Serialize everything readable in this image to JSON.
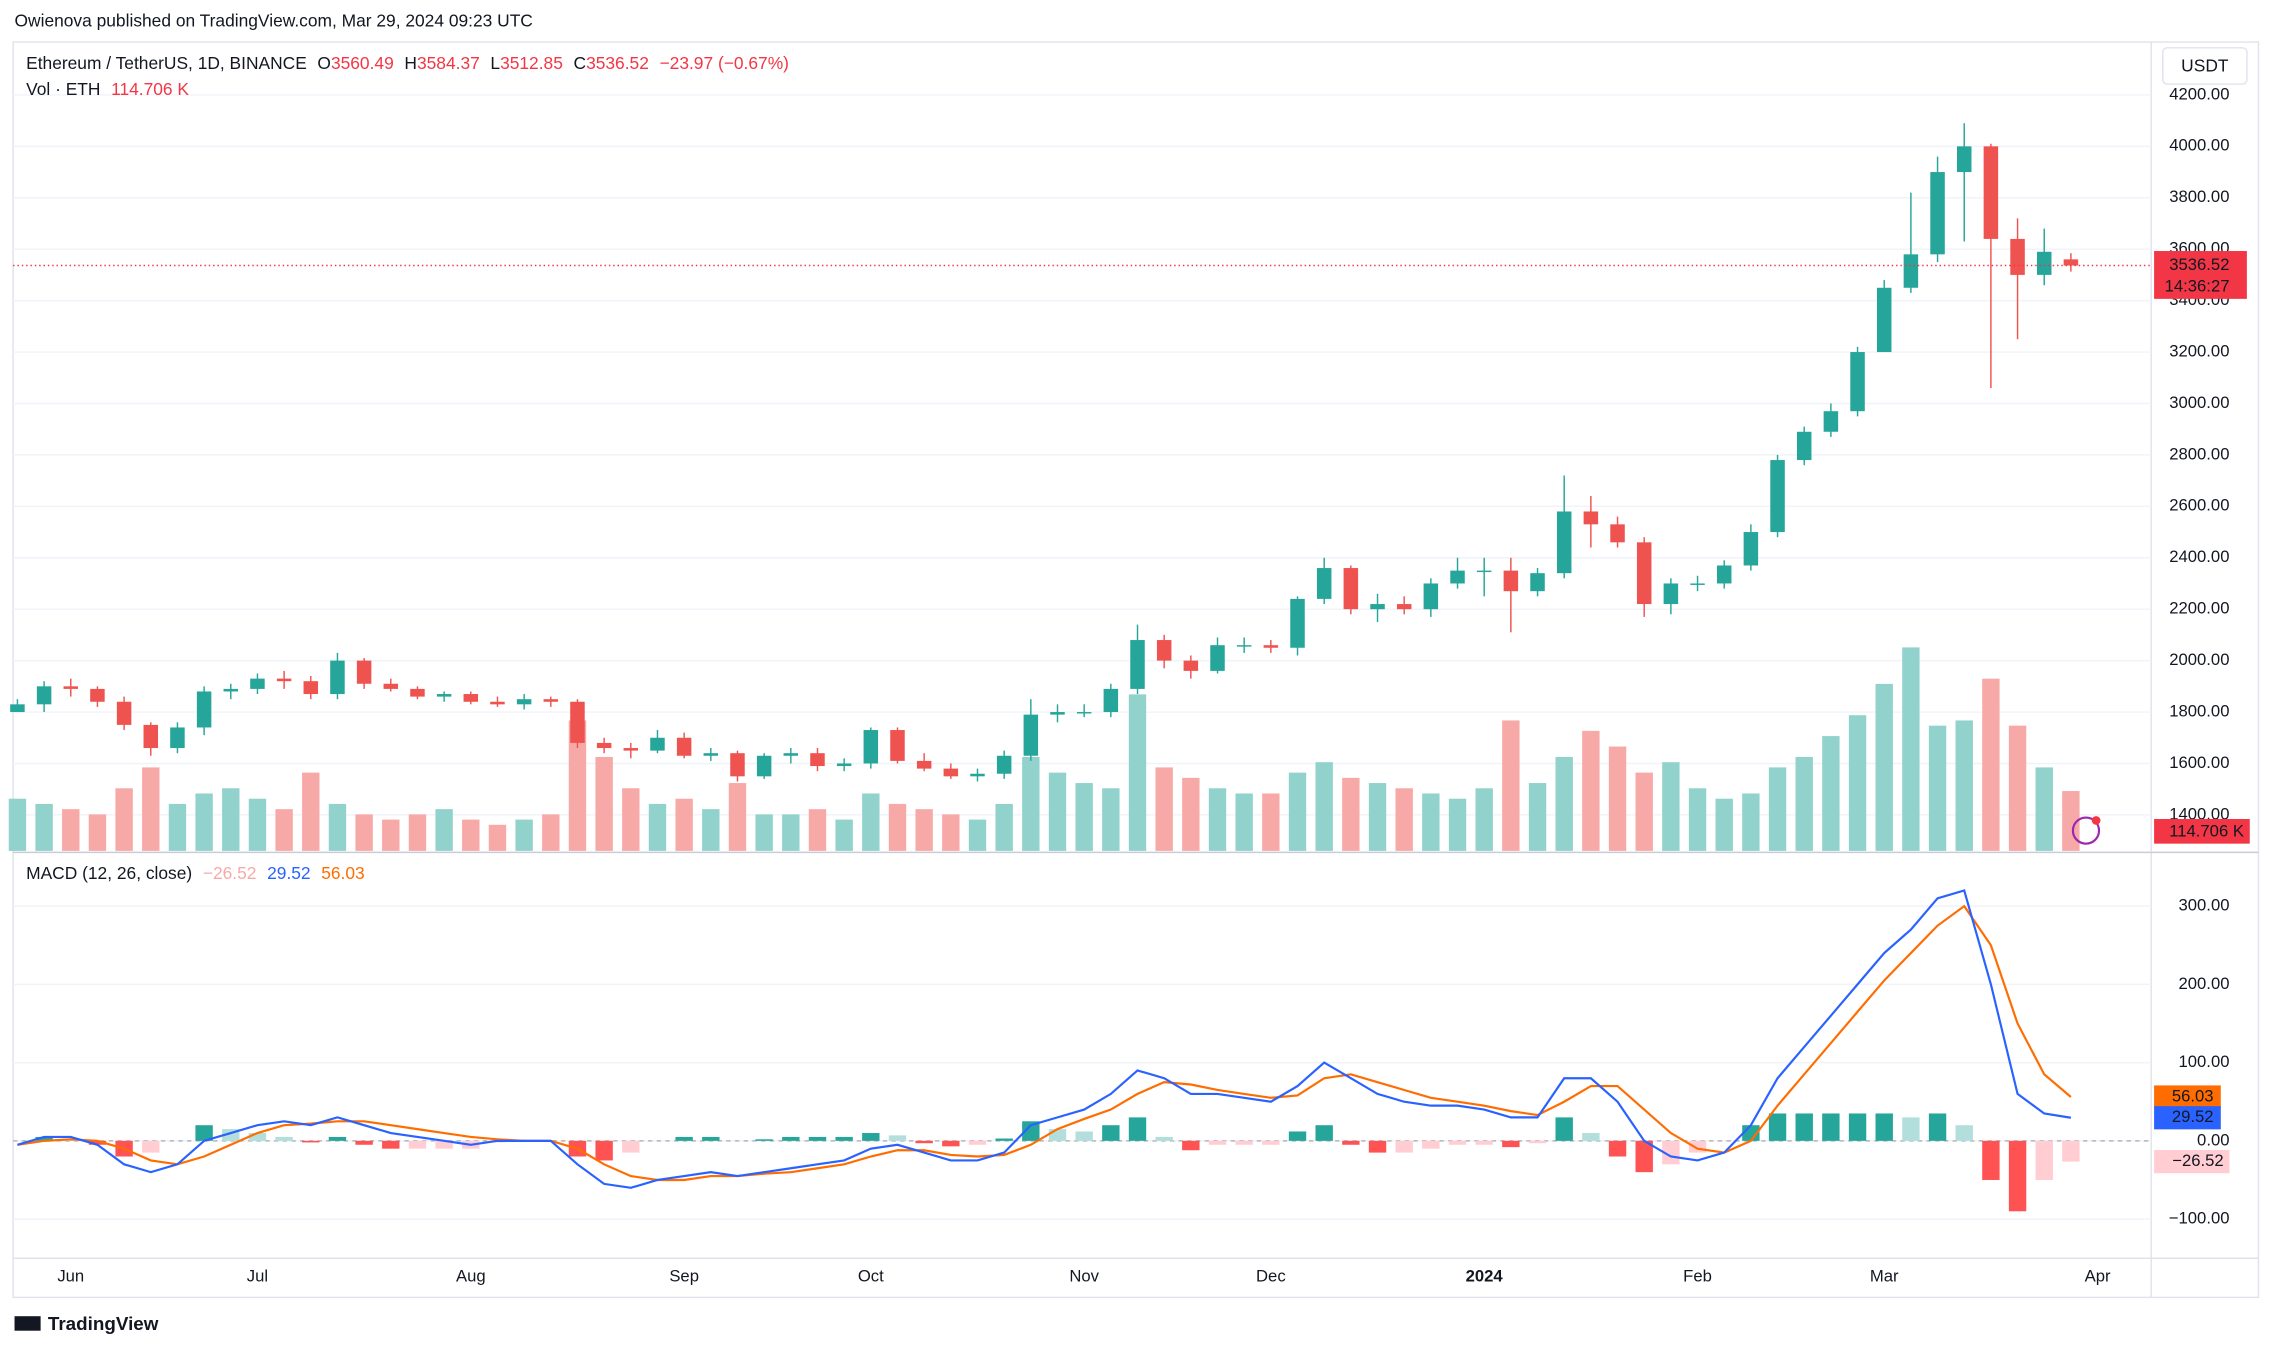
{
  "header": {
    "publisher": "Owienova published on TradingView.com, Mar 29, 2024 09:23 UTC"
  },
  "footer": {
    "logo": "TradingView"
  },
  "chart_data": [
    {
      "type": "candlestick",
      "title": "Ethereum / TetherUS, 1D, BINANCE",
      "legend_keys": [
        "O",
        "H",
        "L",
        "C"
      ],
      "change_label": "−23.97 (−0.67%)",
      "currency": "USDT",
      "countdown": "14:36:27",
      "colors": {
        "up": "#26a69a",
        "down": "#ef5350",
        "last_line": "#f23645"
      },
      "categories": [
        null,
        null,
        "Jun",
        null,
        null,
        null,
        null,
        null,
        null,
        "Jul",
        null,
        null,
        null,
        null,
        null,
        null,
        null,
        "Aug",
        null,
        null,
        null,
        null,
        null,
        null,
        null,
        "Sep",
        null,
        null,
        null,
        null,
        null,
        null,
        "Oct",
        null,
        null,
        null,
        null,
        null,
        null,
        null,
        "Nov",
        null,
        null,
        null,
        null,
        null,
        null,
        "Dec",
        null,
        null,
        null,
        null,
        null,
        null,
        null,
        "2024",
        null,
        null,
        null,
        null,
        null,
        null,
        null,
        "Feb",
        null,
        null,
        null,
        null,
        null,
        null,
        "Mar",
        null,
        null,
        null,
        null,
        null,
        null,
        null,
        "Apr"
      ],
      "open": [
        1800,
        1830,
        1900,
        1890,
        1840,
        1750,
        1660,
        1740,
        1880,
        1890,
        1930,
        1920,
        1870,
        2000,
        1910,
        1890,
        1860,
        1870,
        1840,
        1830,
        1850,
        1840,
        1680,
        1660,
        1650,
        1700,
        1630,
        1640,
        1550,
        1630,
        1640,
        1590,
        1600,
        1730,
        1610,
        1580,
        1550,
        1560,
        1630,
        1790,
        1800,
        1800,
        1890,
        2080,
        2000,
        1960,
        2060,
        2060,
        2050,
        2240,
        2360,
        2200,
        2220,
        2200,
        2300,
        2350,
        2350,
        2270,
        2340,
        2580,
        2530,
        2460,
        2220,
        2300,
        2300,
        2370,
        2500,
        2780,
        2890,
        2970,
        3200,
        3450,
        3580,
        3900,
        4000,
        3640,
        3500,
        3560.49,
        null
      ],
      "high": [
        1850,
        1920,
        1930,
        1900,
        1860,
        1760,
        1760,
        1900,
        1910,
        1950,
        1960,
        1940,
        2030,
        2010,
        1930,
        1900,
        1880,
        1880,
        1860,
        1870,
        1860,
        1850,
        1700,
        1680,
        1730,
        1720,
        1660,
        1650,
        1640,
        1660,
        1660,
        1620,
        1740,
        1740,
        1640,
        1600,
        1580,
        1650,
        1850,
        1830,
        1830,
        1910,
        2140,
        2100,
        2020,
        2090,
        2090,
        2080,
        2250,
        2400,
        2370,
        2260,
        2250,
        2320,
        2400,
        2400,
        2400,
        2360,
        2720,
        2640,
        2560,
        2480,
        2320,
        2330,
        2390,
        2530,
        2800,
        2910,
        3000,
        3220,
        3480,
        3820,
        3960,
        4090,
        4010,
        3720,
        3680,
        3584.37,
        null
      ],
      "low": [
        1800,
        1800,
        1860,
        1820,
        1730,
        1630,
        1640,
        1710,
        1850,
        1870,
        1890,
        1850,
        1850,
        1890,
        1880,
        1850,
        1840,
        1830,
        1820,
        1810,
        1820,
        1660,
        1640,
        1620,
        1640,
        1620,
        1610,
        1530,
        1540,
        1600,
        1570,
        1570,
        1580,
        1600,
        1570,
        1540,
        1530,
        1540,
        1610,
        1760,
        1780,
        1780,
        1870,
        1970,
        1930,
        1950,
        2030,
        2030,
        2020,
        2220,
        2180,
        2150,
        2180,
        2170,
        2280,
        2250,
        2110,
        2250,
        2320,
        2440,
        2440,
        2170,
        2180,
        2270,
        2280,
        2350,
        2480,
        2760,
        2870,
        2950,
        3200,
        3430,
        3550,
        3630,
        3060,
        3250,
        3460,
        3512.85,
        null
      ],
      "close": [
        1830,
        1900,
        1890,
        1840,
        1750,
        1660,
        1740,
        1880,
        1890,
        1930,
        1920,
        1870,
        2000,
        1910,
        1890,
        1860,
        1870,
        1840,
        1830,
        1850,
        1840,
        1680,
        1660,
        1650,
        1700,
        1630,
        1640,
        1550,
        1630,
        1640,
        1590,
        1600,
        1730,
        1610,
        1580,
        1550,
        1560,
        1630,
        1790,
        1800,
        1800,
        1890,
        2080,
        2000,
        1960,
        2060,
        2060,
        2050,
        2240,
        2360,
        2200,
        2220,
        2200,
        2300,
        2350,
        2350,
        2270,
        2340,
        2580,
        2530,
        2460,
        2220,
        2300,
        2300,
        2370,
        2500,
        2780,
        2890,
        2970,
        3200,
        3450,
        3580,
        3900,
        4000,
        3640,
        3500,
        3590,
        3536.52,
        null
      ],
      "volume": {
        "name": "Vol · ETH",
        "up_color": "#92d2cc",
        "down_color": "#f7a9a7",
        "values": [
          100,
          90,
          80,
          70,
          120,
          160,
          90,
          110,
          120,
          100,
          80,
          150,
          90,
          70,
          60,
          70,
          80,
          60,
          50,
          60,
          70,
          250,
          180,
          120,
          90,
          100,
          80,
          130,
          70,
          70,
          80,
          60,
          110,
          90,
          80,
          70,
          60,
          90,
          180,
          150,
          130,
          120,
          300,
          160,
          140,
          120,
          110,
          110,
          150,
          170,
          140,
          130,
          120,
          110,
          100,
          120,
          250,
          130,
          180,
          230,
          200,
          150,
          170,
          120,
          100,
          110,
          160,
          180,
          220,
          260,
          320,
          390,
          240,
          250,
          330,
          240,
          160,
          114.706,
          null
        ],
        "value_labels": [
          null,
          null,
          null,
          null,
          null,
          null,
          null,
          null,
          null,
          null,
          null,
          null,
          null,
          null,
          null,
          null,
          null,
          null,
          null,
          null,
          null,
          null,
          null,
          null,
          null,
          null,
          null,
          null,
          null,
          null,
          null,
          null,
          null,
          null,
          null,
          null,
          null,
          null,
          null,
          null,
          null,
          null,
          null,
          null,
          null,
          null,
          null,
          null,
          null,
          null,
          null,
          null,
          null,
          null,
          null,
          null,
          null,
          null,
          null,
          null,
          null,
          null,
          null,
          null,
          null,
          null,
          null,
          null,
          null,
          null,
          null,
          null,
          null,
          null,
          null,
          null,
          null,
          "114.706 K",
          null
        ]
      },
      "ylim": [
        1260,
        4400
      ],
      "yticks": [
        {
          "value": 1400,
          "label": "1400.00"
        },
        {
          "value": 1600,
          "label": "1600.00"
        },
        {
          "value": 1800,
          "label": "1800.00"
        },
        {
          "value": 2000,
          "label": "2000.00"
        },
        {
          "value": 2200,
          "label": "2200.00"
        },
        {
          "value": 2400,
          "label": "2400.00"
        },
        {
          "value": 2600,
          "label": "2600.00"
        },
        {
          "value": 2800,
          "label": "2800.00"
        },
        {
          "value": 3000,
          "label": "3000.00"
        },
        {
          "value": 3200,
          "label": "3200.00"
        },
        {
          "value": 3400,
          "label": "3400.00"
        },
        {
          "value": 3600,
          "label": "3600.00"
        },
        {
          "value": 3800,
          "label": "3800.00"
        },
        {
          "value": 4000,
          "label": "4000.00"
        },
        {
          "value": 4200,
          "label": "4200.00"
        }
      ],
      "grid": true
    },
    {
      "type": "macd",
      "title": "MACD (12, 26, close)",
      "histogram": {
        "colors": {
          "up_rising": "#26a69a",
          "up_falling": "#b2dfdb",
          "down_falling": "#ff5252",
          "down_rising": "#ffcdd2"
        },
        "values": [
          0,
          5,
          3,
          -5,
          -20,
          -15,
          0,
          20,
          15,
          10,
          5,
          -2,
          5,
          -5,
          -10,
          -10,
          -10,
          -10,
          -2,
          0,
          0,
          -20,
          -25,
          -15,
          0,
          5,
          5,
          0,
          2,
          5,
          5,
          5,
          10,
          7,
          -3,
          -7,
          -5,
          3,
          25,
          15,
          12,
          20,
          30,
          5,
          -12,
          -5,
          -5,
          -5,
          12,
          20,
          -5,
          -15,
          -15,
          -10,
          -5,
          -5,
          -8,
          -3,
          30,
          10,
          -20,
          -40,
          -30,
          -15,
          0,
          20,
          35,
          35,
          35,
          35,
          35,
          30,
          35,
          20,
          -50,
          -90,
          -50,
          -26.52,
          null
        ],
        "value_labels": [
          null,
          null,
          null,
          null,
          null,
          null,
          null,
          null,
          null,
          null,
          null,
          null,
          null,
          null,
          null,
          null,
          null,
          null,
          null,
          null,
          null,
          null,
          null,
          null,
          null,
          null,
          null,
          null,
          null,
          null,
          null,
          null,
          null,
          null,
          null,
          null,
          null,
          null,
          null,
          null,
          null,
          null,
          null,
          null,
          null,
          null,
          null,
          null,
          null,
          null,
          null,
          null,
          null,
          null,
          null,
          null,
          null,
          null,
          null,
          null,
          null,
          null,
          null,
          null,
          null,
          null,
          null,
          null,
          null,
          null,
          null,
          null,
          null,
          null,
          null,
          null,
          null,
          "−26.52",
          null
        ]
      },
      "macd": {
        "color": "#2962ff",
        "values": [
          -5,
          5,
          5,
          -5,
          -30,
          -40,
          -30,
          0,
          10,
          20,
          25,
          20,
          30,
          20,
          10,
          5,
          0,
          -5,
          0,
          0,
          0,
          -30,
          -55,
          -60,
          -50,
          -45,
          -40,
          -45,
          -40,
          -35,
          -30,
          -25,
          -10,
          -5,
          -15,
          -25,
          -25,
          -15,
          20,
          30,
          40,
          60,
          90,
          80,
          60,
          60,
          55,
          50,
          70,
          100,
          80,
          60,
          50,
          45,
          45,
          40,
          30,
          30,
          80,
          80,
          50,
          0,
          -20,
          -25,
          -15,
          20,
          80,
          120,
          160,
          200,
          240,
          270,
          310,
          320,
          200,
          60,
          35,
          29.52,
          null
        ]
      },
      "signal": {
        "color": "#ff6d00",
        "values": [
          -5,
          0,
          2,
          0,
          -10,
          -25,
          -30,
          -20,
          -5,
          10,
          20,
          22,
          25,
          25,
          20,
          15,
          10,
          5,
          2,
          0,
          0,
          -10,
          -30,
          -45,
          -50,
          -50,
          -45,
          -45,
          -42,
          -40,
          -35,
          -30,
          -20,
          -12,
          -12,
          -18,
          -20,
          -18,
          -5,
          15,
          28,
          40,
          60,
          75,
          72,
          65,
          60,
          55,
          58,
          80,
          85,
          75,
          65,
          55,
          50,
          45,
          38,
          33,
          50,
          70,
          70,
          40,
          10,
          -10,
          -15,
          0,
          45,
          85,
          125,
          165,
          205,
          240,
          275,
          300,
          250,
          150,
          85,
          56.03,
          null
        ]
      },
      "ylim": [
        -150,
        365
      ],
      "yticks": [
        {
          "value": -100,
          "label": "−100.00"
        },
        {
          "value": 0,
          "label": "0.00"
        },
        {
          "value": 100,
          "label": "100.00"
        },
        {
          "value": 200,
          "label": "200.00"
        },
        {
          "value": 300,
          "label": "300.00"
        }
      ],
      "grid": true
    }
  ]
}
